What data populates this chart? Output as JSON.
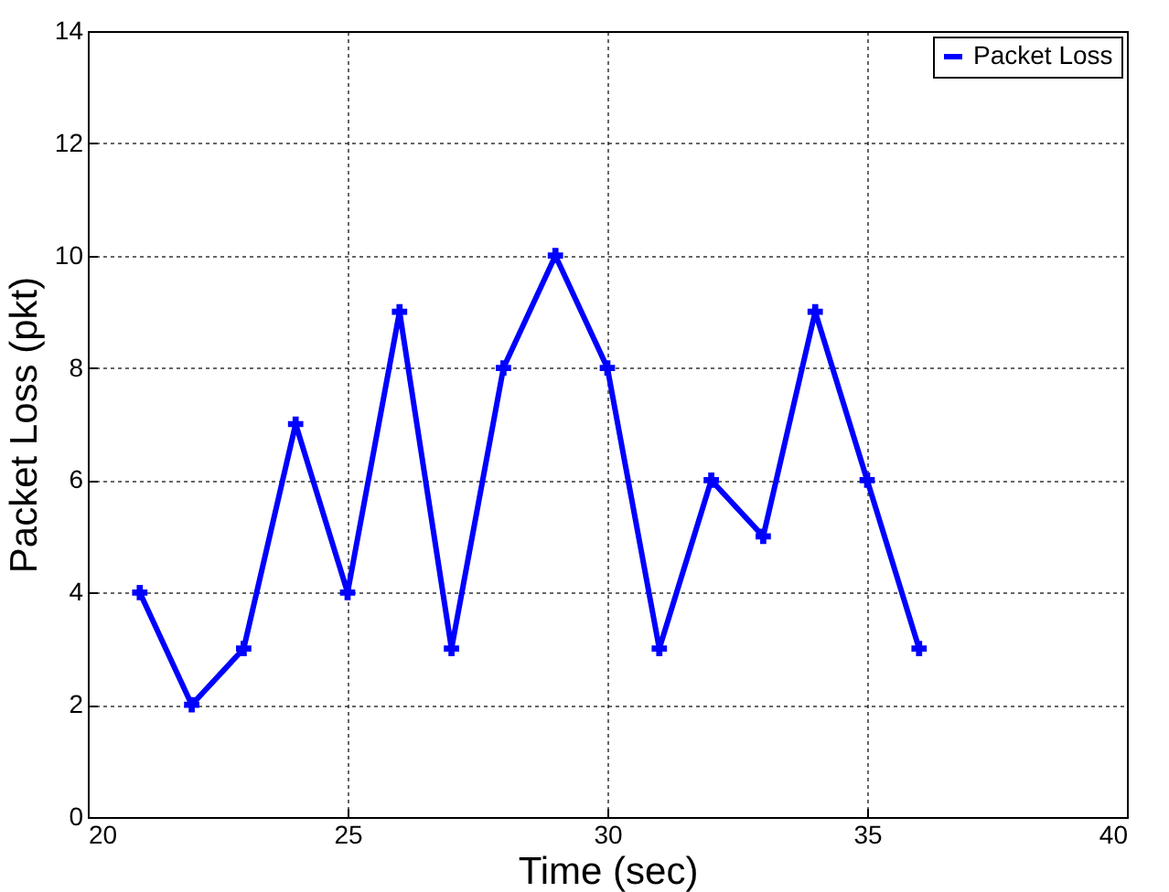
{
  "chart_data": {
    "type": "line",
    "xlabel": "Time (sec)",
    "ylabel": "Packet Loss (pkt)",
    "x": [
      21,
      22,
      23,
      24,
      25,
      26,
      27,
      28,
      29,
      30,
      31,
      32,
      33,
      34,
      35,
      36
    ],
    "series": [
      {
        "name": "Packet Loss",
        "color": "#0000ff",
        "values": [
          4,
          2,
          3,
          7,
          4,
          9,
          3,
          8,
          10,
          8,
          3,
          6,
          5,
          9,
          6,
          3
        ]
      }
    ],
    "xlim": [
      20,
      40
    ],
    "xticks": [
      20,
      25,
      30,
      35,
      40
    ],
    "ylim": [
      0,
      14
    ],
    "yticks": [
      0,
      2,
      4,
      6,
      8,
      10,
      12,
      14
    ],
    "grid": true,
    "legend": "top right",
    "marker": "cross",
    "line_style": "solid"
  }
}
